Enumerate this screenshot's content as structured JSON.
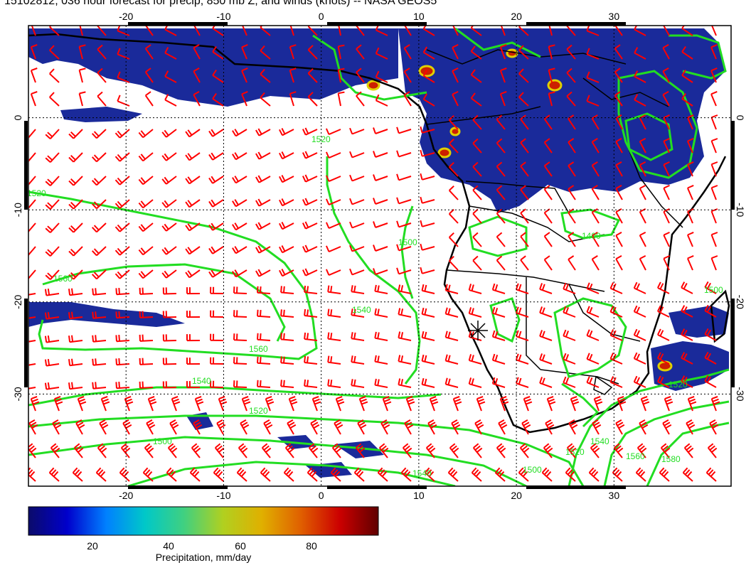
{
  "title": "15102812, 036 hour forecast for precip, 850 mb Z, and winds (knots) -- NASA GEOS5",
  "map": {
    "lon_range": [
      -30,
      42
    ],
    "lat_range": [
      -40,
      10
    ],
    "lon_ticks": [
      "-20",
      "-10",
      "0",
      "10",
      "20",
      "30"
    ],
    "lat_ticks": [
      "0",
      "-10",
      "-20",
      "-30"
    ],
    "contour_labels": [
      "1400",
      "1500",
      "1520",
      "1540",
      "1560",
      "1580"
    ],
    "contour_color": "#22dd22",
    "wind_barb_color": "#ff0000",
    "precip_base_color": "#1a2a9a"
  },
  "colorbar": {
    "title": "Precipitation, mm/day",
    "ticks": [
      "20",
      "40",
      "60",
      "80"
    ],
    "stops": [
      "#0b0b6a",
      "#0000cc",
      "#0080ff",
      "#00c8c8",
      "#40d080",
      "#b0d020",
      "#e0b000",
      "#e06000",
      "#cc0000",
      "#600000"
    ]
  }
}
